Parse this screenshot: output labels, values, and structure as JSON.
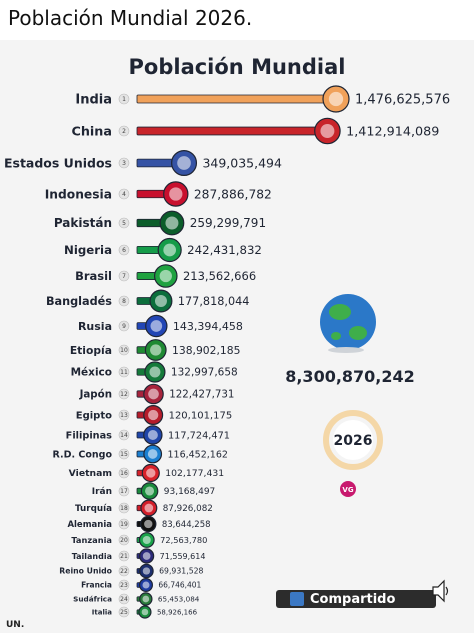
{
  "header": {
    "text": "Población Mundial 2026."
  },
  "chart_data": {
    "type": "bar",
    "title": "Población Mundial",
    "categories": [
      "India",
      "China",
      "Estados Unidos",
      "Indonesia",
      "Pakistán",
      "Nigeria",
      "Brasil",
      "Bangladés",
      "Rusia",
      "Etiopía",
      "México",
      "Japón",
      "Egipto",
      "Filipinas",
      "R.D. Congo",
      "Vietnam",
      "Irán",
      "Turquía",
      "Alemania",
      "Tanzania",
      "Tailandia",
      "Reino Unido",
      "Francia",
      "Sudáfrica",
      "Italia"
    ],
    "ranks": [
      "1",
      "2",
      "3",
      "4",
      "5",
      "6",
      "7",
      "8",
      "9",
      "10",
      "11",
      "12",
      "13",
      "14",
      "15",
      "16",
      "17",
      "18",
      "19",
      "20",
      "21",
      "22",
      "23",
      "24",
      "25"
    ],
    "values": [
      1476625576,
      1412914089,
      349035494,
      287886782,
      259299791,
      242431832,
      213562666,
      177818044,
      143394458,
      138902185,
      132997658,
      122427731,
      120101175,
      117724471,
      116452162,
      102177431,
      93168497,
      87926082,
      83644258,
      72563780,
      71559614,
      69931528,
      66746401,
      65453084,
      58926166
    ],
    "value_labels": [
      "1,476,625,576",
      "1,412,914,089",
      "349,035,494",
      "287,886,782",
      "259,299,791",
      "242,431,832",
      "213,562,666",
      "177,818,044",
      "143,394,458",
      "138,902,185",
      "132,997,658",
      "122,427,731",
      "120,101,175",
      "117,724,471",
      "116,452,162",
      "102,177,431",
      "93,168,497",
      "87,926,082",
      "83,644,258",
      "72,563,780",
      "71,559,614",
      "69,931,528",
      "66,746,401",
      "65,453,084",
      "58,926,166"
    ],
    "colors": [
      "#f0a15a",
      "#c8242a",
      "#3553a5",
      "#c8102e",
      "#0b5d2a",
      "#159c49",
      "#1fa240",
      "#0b6e3c",
      "#2246b5",
      "#1f8a33",
      "#157a3a",
      "#a7233b",
      "#b51c2a",
      "#1f45a8",
      "#1b7fd0",
      "#d8222a",
      "#1a8b3c",
      "#d21f2a",
      "#111111",
      "#1aa34a",
      "#2c2a7a",
      "#1c2e6e",
      "#1f3ba0",
      "#2a7a3a",
      "#1a8b3c"
    ],
    "flags": [
      "india-flag",
      "china-flag",
      "usa-flag",
      "indonesia-flag",
      "pakistan-flag",
      "nigeria-flag",
      "brazil-flag",
      "bangladesh-flag",
      "russia-flag",
      "ethiopia-flag",
      "mexico-flag",
      "japan-flag",
      "egypt-flag",
      "philippines-flag",
      "drcongo-flag",
      "vietnam-flag",
      "iran-flag",
      "turkey-flag",
      "germany-flag",
      "tanzania-flag",
      "thailand-flag",
      "uk-flag",
      "france-flag",
      "southafrica-flag",
      "italy-flag"
    ],
    "total": "8,300,870,242",
    "year": "2026",
    "logo_text": "VG"
  },
  "source": "UN.",
  "share_button": {
    "label": "Compartido"
  },
  "icons": {
    "globe": "globe-icon",
    "sound": "speaker-icon",
    "thumb": "thumbs-up-icon"
  }
}
